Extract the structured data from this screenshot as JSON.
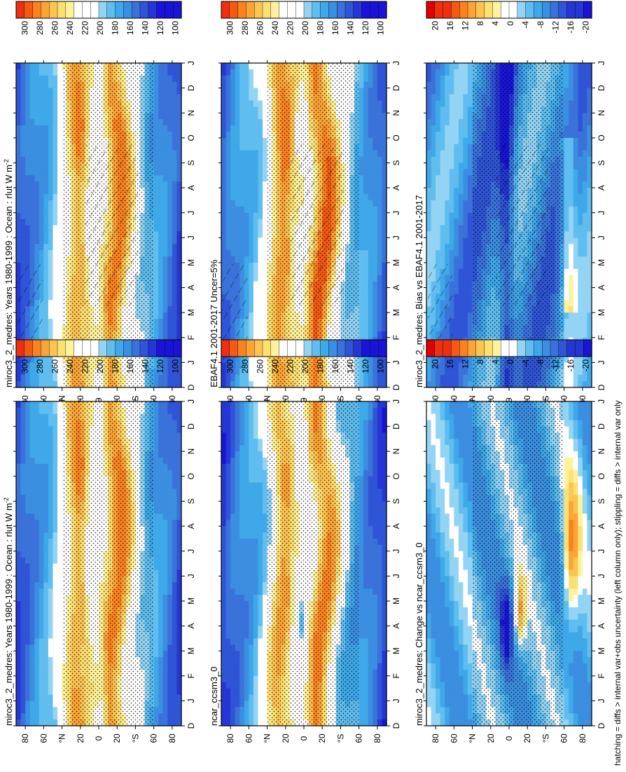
{
  "figure": {
    "footnote": "hatching = diffs > internal var+obs uncertainty (left column only); stippling = diffs > internal var only",
    "month_labels": [
      "D",
      "J",
      "F",
      "M",
      "A",
      "M",
      "J",
      "J",
      "A",
      "S",
      "O",
      "N",
      "D",
      "J"
    ],
    "lat_ticks": [
      "80",
      "60",
      "°N",
      "20",
      "0",
      "20",
      "°S",
      "60",
      "80"
    ]
  },
  "chart_data": [
    {
      "id": "top-left",
      "type": "heatmap",
      "title": "miroc3_2_medres: Years 1980-1999 : Ocean : rlut W m",
      "title_sup": "-2",
      "field": "base",
      "variant": 0,
      "hatching": true,
      "colorbar": {
        "ticks": [
          "300",
          "280",
          "260",
          "240",
          "220",
          "200",
          "180",
          "160",
          "140",
          "120",
          "100"
        ],
        "range": [
          100,
          310
        ]
      }
    },
    {
      "id": "top-right",
      "type": "heatmap",
      "title": "miroc3_2_medres: Years 1980-1999 : Ocean : rlut W m",
      "title_sup": "-2",
      "field": "base",
      "variant": 0,
      "hatching": false,
      "colorbar": {
        "ticks": [
          "300",
          "280",
          "260",
          "240",
          "220",
          "200",
          "180",
          "160",
          "140",
          "120",
          "100"
        ],
        "range": [
          100,
          310
        ]
      }
    },
    {
      "id": "mid-left",
      "type": "heatmap",
      "title": "EBAF4.1 2001-2017 Uncer=5%",
      "title_sup": "",
      "field": "base",
      "variant": 1,
      "hatching": true,
      "colorbar": {
        "ticks": [
          "300",
          "280",
          "260",
          "240",
          "220",
          "200",
          "180",
          "160",
          "140",
          "120",
          "100"
        ],
        "range": [
          100,
          310
        ]
      }
    },
    {
      "id": "mid-right",
      "type": "heatmap",
      "title": "ncar_ccsm3_0",
      "title_sup": "",
      "field": "base",
      "variant": 2,
      "hatching": false,
      "colorbar": {
        "ticks": [
          "300",
          "280",
          "260",
          "240",
          "220",
          "200",
          "180",
          "160",
          "140",
          "120",
          "100"
        ],
        "range": [
          100,
          310
        ]
      }
    },
    {
      "id": "bot-left",
      "type": "heatmap",
      "title": "miroc3_2_medres: Bias vs EBAF4.1 2001-2017",
      "title_sup": "",
      "field": "diff",
      "variant": 0,
      "hatching": true,
      "colorbar": {
        "ticks": [
          "20",
          "16",
          "12",
          "8",
          "4",
          "0",
          "-4",
          "-8",
          "-12",
          "-16",
          "-20"
        ],
        "range": [
          -22,
          22
        ]
      }
    },
    {
      "id": "bot-right",
      "type": "heatmap",
      "title": "miroc3_2_medres: Change vs ncar_ccsm3_0",
      "title_sup": "",
      "field": "diff",
      "variant": 1,
      "hatching": false,
      "colorbar": {
        "ticks": [
          "20",
          "16",
          "12",
          "8",
          "4",
          "0",
          "-4",
          "-8",
          "-12",
          "-16",
          "-20"
        ],
        "range": [
          -22,
          22
        ]
      }
    }
  ],
  "colors": {
    "warm": [
      "#e00000",
      "#ec3010",
      "#f55a14",
      "#fb8220",
      "#fba437",
      "#fcc452",
      "#fde072",
      "#fef39c",
      "#ffffff"
    ],
    "cool": [
      "#ffffff",
      "#93d4f4",
      "#5fbdef",
      "#3ea8e8",
      "#3b8ee0",
      "#3a72da",
      "#2f55d6",
      "#2536d4",
      "#1a14d8"
    ],
    "frame": "#000000"
  }
}
